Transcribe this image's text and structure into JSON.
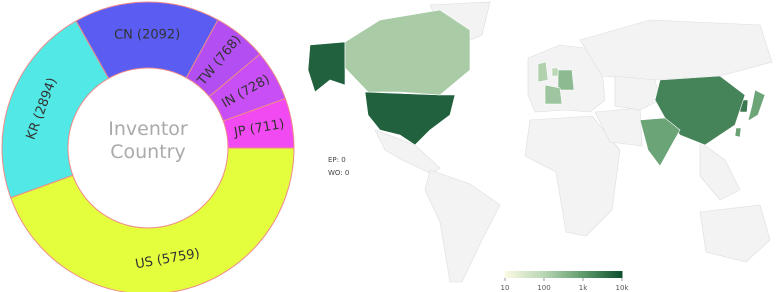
{
  "chart_data": [
    {
      "type": "donut",
      "title": "Inventor Country",
      "values": [
        5759,
        2894,
        2092,
        768,
        728,
        711
      ],
      "value_labels": [
        "US (5759)",
        "KR (2894)",
        "CN (2092)",
        "TW (768)",
        "IN (728)",
        "JP (711)"
      ],
      "colors": [
        "#e4fd3c",
        "#52e8e6",
        "#5b5df2",
        "#b24ef2",
        "#c84ff6",
        "#f24af2"
      ]
    },
    {
      "type": "map",
      "values": [
        5759,
        2894,
        2092,
        768,
        728,
        711,
        150,
        120,
        300,
        200,
        90
      ],
      "annotations": [
        "EP: 0",
        "WO: 0"
      ],
      "xlim": [
        10,
        10000
      ],
      "xticks": [
        10,
        100,
        {
          "value": 1000,
          "label": "1k"
        },
        {
          "value": 10000,
          "label": "10k"
        }
      ],
      "log_scale": true,
      "color_stops": [
        "#fafae2",
        "#b9d6b4",
        "#5f9c6d",
        "#0e4f2e"
      ]
    }
  ]
}
